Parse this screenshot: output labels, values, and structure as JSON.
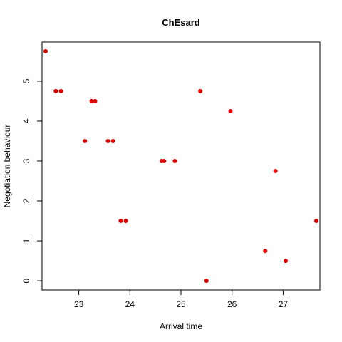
{
  "chart_data": {
    "type": "scatter",
    "title": "ChEsard",
    "xlabel": "Arrival time",
    "ylabel": "Negotiation behaviour",
    "xlim": [
      22.28,
      27.72
    ],
    "ylim": [
      -0.23,
      5.98
    ],
    "xticks": [
      23,
      24,
      25,
      26,
      27
    ],
    "yticks": [
      0,
      1,
      2,
      3,
      4,
      5
    ],
    "grid": false,
    "legend": "none",
    "point_color": "#e00000",
    "points": [
      {
        "x": 22.35,
        "y": 5.75
      },
      {
        "x": 22.55,
        "y": 4.75
      },
      {
        "x": 22.65,
        "y": 4.75
      },
      {
        "x": 23.12,
        "y": 3.5
      },
      {
        "x": 23.25,
        "y": 4.5
      },
      {
        "x": 23.32,
        "y": 4.5
      },
      {
        "x": 23.57,
        "y": 3.5
      },
      {
        "x": 23.67,
        "y": 3.5
      },
      {
        "x": 23.82,
        "y": 1.5
      },
      {
        "x": 23.92,
        "y": 1.5
      },
      {
        "x": 24.62,
        "y": 3.0
      },
      {
        "x": 24.67,
        "y": 3.0
      },
      {
        "x": 24.88,
        "y": 3.0
      },
      {
        "x": 25.38,
        "y": 4.75
      },
      {
        "x": 25.5,
        "y": 0.0
      },
      {
        "x": 25.97,
        "y": 4.25
      },
      {
        "x": 26.65,
        "y": 0.75
      },
      {
        "x": 26.85,
        "y": 2.75
      },
      {
        "x": 27.05,
        "y": 0.5
      },
      {
        "x": 27.65,
        "y": 1.5
      }
    ]
  }
}
